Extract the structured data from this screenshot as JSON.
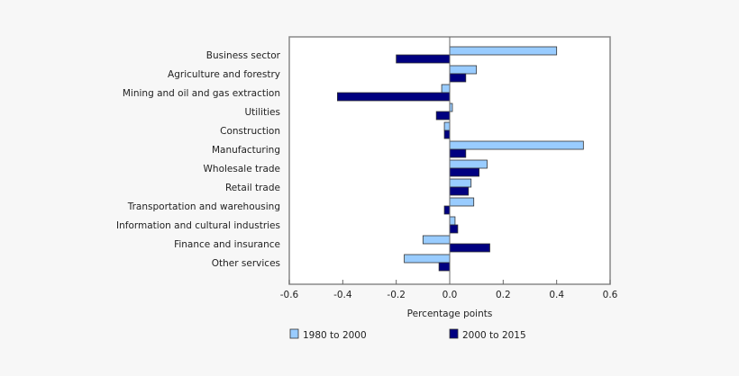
{
  "chart_data": {
    "type": "bar",
    "orientation": "horizontal",
    "categories": [
      "Business sector",
      "Agriculture and forestry",
      "Mining and oil and gas extraction",
      "Utilities",
      "Construction",
      "Manufacturing",
      "Wholesale trade",
      "Retail trade",
      "Transportation and warehousing",
      "Information and cultural industries",
      "Finance and insurance",
      "Other services"
    ],
    "series": [
      {
        "name": "1980 to 2000",
        "color": "#99ccff",
        "values": [
          0.4,
          0.1,
          -0.03,
          0.01,
          -0.02,
          0.5,
          0.14,
          0.08,
          0.09,
          0.02,
          -0.1,
          -0.17
        ]
      },
      {
        "name": "2000 to 2015",
        "color": "#000080",
        "values": [
          -0.2,
          0.06,
          -0.42,
          -0.05,
          -0.02,
          0.06,
          0.11,
          0.07,
          -0.02,
          0.03,
          0.15,
          -0.04
        ]
      }
    ],
    "xlabel": "Percentage points",
    "ylabel": "",
    "xlim": [
      -0.6,
      0.6
    ],
    "xticks": [
      "-0.6",
      "-0.4",
      "-0.2",
      "0.0",
      "0.2",
      "0.4",
      "0.6"
    ],
    "grid": false,
    "legend_position": "bottom"
  }
}
